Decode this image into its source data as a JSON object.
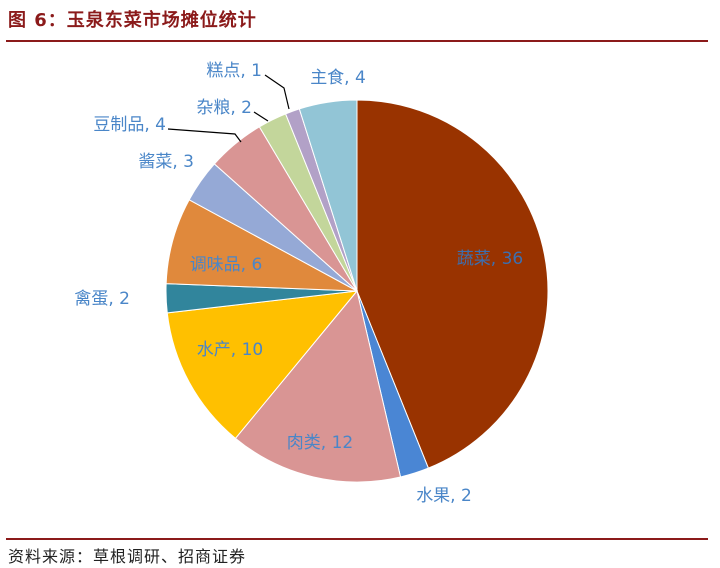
{
  "header": {
    "title": "图 6：玉泉东菜市场摊位统计"
  },
  "footer": {
    "source": "资料来源：草根调研、招商证券"
  },
  "chart_data": {
    "type": "pie",
    "title": "",
    "start_angle_deg": 0,
    "direction": "clockwise",
    "slices": [
      {
        "label": "蔬菜, 36",
        "category": "蔬菜",
        "value": 36,
        "color": "#993300"
      },
      {
        "label": "水果, 2",
        "category": "水果",
        "value": 2,
        "color": "#4a86d4"
      },
      {
        "label": "肉类, 12",
        "category": "肉类",
        "value": 12,
        "color": "#d99594"
      },
      {
        "label": "水产, 10",
        "category": "水产",
        "value": 10,
        "color": "#ffc000"
      },
      {
        "label": "禽蛋, 2",
        "category": "禽蛋",
        "value": 2,
        "color": "#31859c"
      },
      {
        "label": "调味品, 6",
        "category": "调味品",
        "value": 6,
        "color": "#e0893c"
      },
      {
        "label": "酱菜, 3",
        "category": "酱菜",
        "value": 3,
        "color": "#95a9d6"
      },
      {
        "label": "豆制品, 4",
        "category": "豆制品",
        "value": 4,
        "color": "#d99594"
      },
      {
        "label": "杂粮, 2",
        "category": "杂粮",
        "value": 2,
        "color": "#c3d69b"
      },
      {
        "label": "糕点, 1",
        "category": "糕点",
        "value": 1,
        "color": "#b2a1c7"
      },
      {
        "label": "主食, 4",
        "category": "主食",
        "value": 4,
        "color": "#92c5d6"
      }
    ],
    "label_colors": {
      "inside": "#3c6fb0",
      "outside": "#4a86c8"
    }
  }
}
